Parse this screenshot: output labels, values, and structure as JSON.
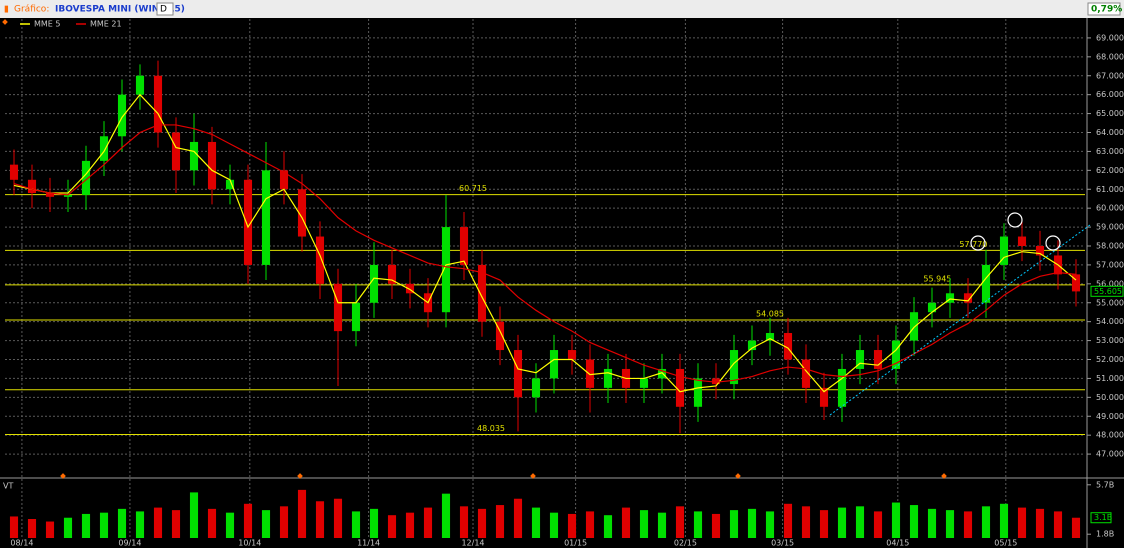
{
  "header": {
    "label": "Gráfico:",
    "symbol": "IBOVESPA MINI (WINM15)",
    "period": "D",
    "change": "0,79%"
  },
  "chart_data": [
    {
      "type": "candlestick",
      "xlim": [
        0,
        60
      ],
      "ylim": [
        46000,
        70000
      ],
      "xticks": [
        {
          "value": 0.94,
          "label": "08/14"
        },
        {
          "value": 6.94,
          "label": "09/14"
        },
        {
          "value": 13.6,
          "label": "10/14"
        },
        {
          "value": 20.2,
          "label": "11/14"
        },
        {
          "value": 26,
          "label": "12/14"
        },
        {
          "value": 31.7,
          "label": "01/15"
        },
        {
          "value": 37.8,
          "label": "02/15"
        },
        {
          "value": 43.2,
          "label": "03/15"
        },
        {
          "value": 49.6,
          "label": "04/15"
        },
        {
          "value": 55.6,
          "label": "05/15"
        }
      ],
      "yticks": [
        {
          "value": 47000,
          "label": "47.000"
        },
        {
          "value": 48000,
          "label": "48.000"
        },
        {
          "value": 49000,
          "label": "49.000"
        },
        {
          "value": 50000,
          "label": "50.000"
        },
        {
          "value": 51000,
          "label": "51.000"
        },
        {
          "value": 52000,
          "label": "52.000"
        },
        {
          "value": 53000,
          "label": "53.000"
        },
        {
          "value": 54000,
          "label": "54.000"
        },
        {
          "value": 55000,
          "label": "55.000"
        },
        {
          "value": 56000,
          "label": "56.000"
        },
        {
          "value": 57000,
          "label": "57.000"
        },
        {
          "value": 58000,
          "label": "58.000"
        },
        {
          "value": 59000,
          "label": "59.000"
        },
        {
          "value": 60000,
          "label": "60.000"
        },
        {
          "value": 61000,
          "label": "61.000"
        },
        {
          "value": 62000,
          "label": "62.000"
        },
        {
          "value": 63000,
          "label": "63.000"
        },
        {
          "value": 64000,
          "label": "64.000"
        },
        {
          "value": 65000,
          "label": "65.000"
        },
        {
          "value": 66000,
          "label": "66.000"
        },
        {
          "value": 67000,
          "label": "67.000"
        },
        {
          "value": 68000,
          "label": "68.000"
        },
        {
          "value": 69000,
          "label": "69.000"
        }
      ],
      "grid": true,
      "up_color": "#00e000",
      "down_color": "#e00000",
      "open": [
        62300,
        61500,
        60800,
        60600,
        60700,
        62500,
        63800,
        66000,
        67000,
        64000,
        62000,
        63500,
        61000,
        61500,
        57000,
        62000,
        61000,
        58500,
        56000,
        53500,
        55000,
        57000,
        56000,
        55500,
        54500,
        59000,
        57000,
        54000,
        52500,
        50000,
        51000,
        52500,
        52000,
        50500,
        51500,
        50500,
        51000,
        51500,
        49500,
        51000,
        50700,
        52500,
        53000,
        53400,
        52000,
        50500,
        49500,
        51500,
        52500,
        51500,
        53000,
        54500,
        55000,
        55500,
        55000,
        57000,
        58500,
        58000,
        57500,
        56500
      ],
      "high": [
        63100,
        62300,
        61600,
        61500,
        63300,
        64600,
        66800,
        67600,
        67800,
        64800,
        65000,
        64300,
        62300,
        62300,
        63500,
        63000,
        61800,
        59300,
        56800,
        56000,
        58200,
        57800,
        56800,
        56300,
        60700,
        59800,
        57800,
        54800,
        53300,
        51800,
        53300,
        53300,
        52800,
        52300,
        52300,
        51800,
        52300,
        52300,
        51800,
        51800,
        53300,
        53800,
        54200,
        54200,
        52800,
        51300,
        52300,
        53300,
        53300,
        53800,
        55300,
        55800,
        56300,
        56300,
        57800,
        59200,
        59300,
        58800,
        58300,
        57300
      ],
      "low": [
        60700,
        60000,
        59800,
        59800,
        59900,
        61700,
        63000,
        65200,
        63200,
        60800,
        61200,
        60200,
        60200,
        56000,
        56200,
        60200,
        57700,
        55200,
        50600,
        52700,
        54200,
        55200,
        54700,
        53700,
        53700,
        56200,
        53200,
        51700,
        48200,
        49200,
        50200,
        51200,
        49200,
        49700,
        49700,
        49700,
        50200,
        48100,
        48700,
        49900,
        49900,
        51700,
        52200,
        51200,
        49700,
        48800,
        48700,
        50700,
        50700,
        50700,
        52200,
        53700,
        54200,
        54200,
        54200,
        56200,
        57200,
        56700,
        55700,
        54800
      ],
      "close": [
        61500,
        60800,
        60600,
        60700,
        62500,
        63800,
        66000,
        67000,
        64000,
        62000,
        63500,
        61000,
        61500,
        57000,
        62000,
        61000,
        58500,
        56000,
        53500,
        55000,
        57000,
        56000,
        55500,
        54500,
        59000,
        57000,
        54000,
        52500,
        50000,
        51000,
        52500,
        52000,
        50500,
        51500,
        50500,
        51000,
        51500,
        49500,
        51000,
        50700,
        52500,
        53000,
        53400,
        52000,
        50500,
        49500,
        51500,
        52500,
        51500,
        53000,
        54500,
        55000,
        55500,
        55000,
        57000,
        58500,
        58000,
        57500,
        56500,
        55600
      ],
      "series": [
        {
          "name": "MME 5",
          "color": "#ffff00",
          "values": [
            61200,
            61000,
            60800,
            60800,
            61800,
            63000,
            64800,
            66000,
            65000,
            63200,
            63000,
            62000,
            61500,
            59000,
            60500,
            61000,
            59500,
            57500,
            55000,
            55000,
            56300,
            56200,
            55700,
            55000,
            57000,
            57200,
            55300,
            53500,
            51500,
            51300,
            52000,
            52000,
            51200,
            51300,
            51000,
            51000,
            51300,
            50300,
            50500,
            50600,
            51800,
            52600,
            53100,
            52600,
            51400,
            50300,
            51000,
            51800,
            51700,
            52500,
            53700,
            54500,
            55200,
            55100,
            56300,
            57400,
            57700,
            57600,
            57000,
            56200
          ]
        },
        {
          "name": "MME 21",
          "color": "#e00000",
          "values": [
            61300,
            61000,
            60800,
            60700,
            61500,
            62300,
            63200,
            64000,
            64400,
            64400,
            64200,
            63900,
            63400,
            62900,
            62400,
            61900,
            61300,
            60500,
            59500,
            58800,
            58300,
            57900,
            57500,
            57100,
            56900,
            56800,
            56600,
            56200,
            55300,
            54600,
            54000,
            53500,
            52900,
            52500,
            52100,
            51700,
            51400,
            51100,
            50900,
            50800,
            50900,
            51100,
            51400,
            51600,
            51500,
            51200,
            51100,
            51200,
            51400,
            51800,
            52300,
            52800,
            53400,
            53900,
            54600,
            55400,
            56000,
            56400,
            56600,
            56500
          ]
        }
      ],
      "levels": {
        "color": "#e0e000",
        "values": [
          60715,
          57770,
          55945,
          54085,
          50400,
          48035
        ],
        "value_labels": [
          "60.715",
          "57.770",
          "55.945",
          "54.085",
          null,
          "48.035"
        ]
      },
      "last": {
        "value": 55605,
        "label": "55.605"
      }
    },
    {
      "type": "bar",
      "title": "VT",
      "xlim": [
        0,
        60
      ],
      "ylim": [
        1.5,
        6
      ],
      "yticks": [
        {
          "value": 5.7,
          "label": "5.7B"
        },
        {
          "value": 1.8,
          "label": "1.8B"
        }
      ],
      "values": [
        3.2,
        3.0,
        2.8,
        3.1,
        3.4,
        3.5,
        3.8,
        3.6,
        3.9,
        3.7,
        5.1,
        3.8,
        3.5,
        4.2,
        3.7,
        4.0,
        5.3,
        4.4,
        4.6,
        3.6,
        3.8,
        3.3,
        3.5,
        3.9,
        5.0,
        4.0,
        3.8,
        4.1,
        4.6,
        3.9,
        3.5,
        3.4,
        3.6,
        3.3,
        3.9,
        3.7,
        3.5,
        4.0,
        3.6,
        3.4,
        3.7,
        3.8,
        3.6,
        4.2,
        4.0,
        3.7,
        3.9,
        4.0,
        3.6,
        4.3,
        4.1,
        3.8,
        3.7,
        3.6,
        4.0,
        4.2,
        3.9,
        3.8,
        3.6,
        3.1
      ],
      "last": {
        "value": 3.1,
        "label": "3.1B"
      }
    }
  ]
}
